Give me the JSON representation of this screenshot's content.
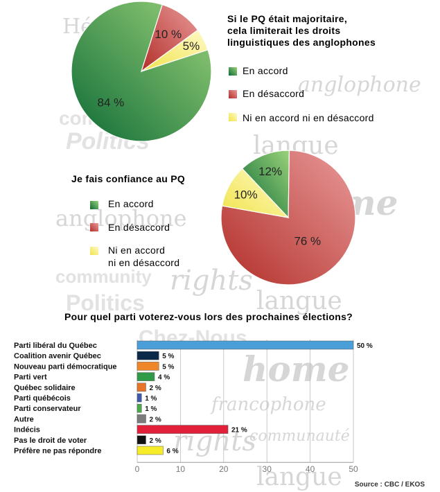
{
  "watermark_words": [
    "Politics",
    "rights",
    "community",
    "langue",
    "home",
    "francophone",
    "communauté",
    "anglophone",
    "Chez-Nous",
    "Héritage"
  ],
  "chart_data": [
    {
      "type": "pie",
      "title": [
        "Si le PQ était majoritaire,",
        "cela limiterait les droits",
        "linguistiques des anglophones"
      ],
      "slices": [
        {
          "label": "En accord",
          "value": 84,
          "display": "84 %",
          "color": "#3c9a3e"
        },
        {
          "label": "En désaccord",
          "value": 10,
          "display": "10 %",
          "color": "#c0443a"
        },
        {
          "label": "Ni en accord ni en désaccord",
          "value": 5,
          "display": "5%",
          "color": "#f3ec6e"
        }
      ]
    },
    {
      "type": "pie",
      "title": [
        "Je fais confiance au PQ"
      ],
      "slices": [
        {
          "label": "En accord",
          "value": 12,
          "display": "12%",
          "color": "#3c9a3e"
        },
        {
          "label": "En désaccord",
          "value": 76,
          "display": "76 %",
          "color": "#c0443a"
        },
        {
          "label": "Ni en accord ni en désaccord",
          "value": 10,
          "display": "10%",
          "color": "#f3ec6e"
        }
      ],
      "legend_lines": [
        [
          "En accord"
        ],
        [
          "En désaccord"
        ],
        [
          "Ni en accord",
          "ni en désaccord"
        ]
      ]
    },
    {
      "type": "bar",
      "orientation": "horizontal",
      "title": "Pour quel parti voterez-vous lors des prochaines élections?",
      "categories": [
        "Parti libéral du Québec",
        "Coalition avenir Québec",
        "Nouveau parti démocratique",
        "Parti vert",
        "Québec solidaire",
        "Parti québécois",
        "Parti conservateur",
        "Autre",
        "Indécis",
        "Pas le droit de voter",
        "Préfère ne pas répondre"
      ],
      "values": [
        50,
        5,
        5,
        4,
        2,
        1,
        1,
        2,
        21,
        2,
        6
      ],
      "value_labels": [
        "50 %",
        "5 %",
        "5 %",
        "4 %",
        "2 %",
        "1 %",
        "1 %",
        "2 %",
        "21 %",
        "2 %",
        "6 %"
      ],
      "colors": [
        "#4a9fd8",
        "#0b2a4a",
        "#f0862a",
        "#2f9a48",
        "#e8742a",
        "#3f5aa8",
        "#4caa4a",
        "#7b7b7b",
        "#e2203a",
        "#111111",
        "#f7ec2a"
      ],
      "xlim": [
        0,
        50
      ],
      "xticks": [
        0,
        10,
        20,
        30,
        40,
        50
      ],
      "source": "Source : CBC / EKOS"
    }
  ]
}
